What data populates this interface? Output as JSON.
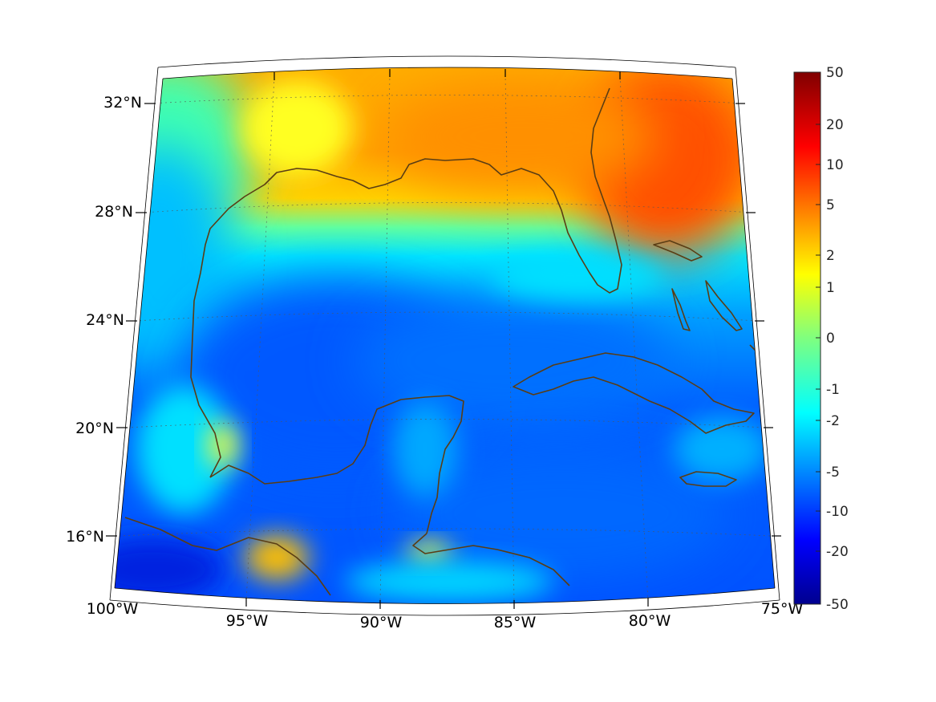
{
  "map": {
    "longitude_labels": [
      "100°W",
      "95°W",
      "90°W",
      "85°W",
      "80°W",
      "75°W"
    ],
    "latitude_labels": [
      "16°N",
      "20°N",
      "24°N",
      "28°N",
      "32°N"
    ],
    "colormap": "jet",
    "coastline_color": "#5a3d14",
    "grid_style": "dotted"
  },
  "colorbar": {
    "tick_labels": [
      "50",
      "20",
      "10",
      "5",
      "2",
      "1",
      "0",
      "-1",
      "-2",
      "-5",
      "-10",
      "-20",
      "-50"
    ]
  }
}
